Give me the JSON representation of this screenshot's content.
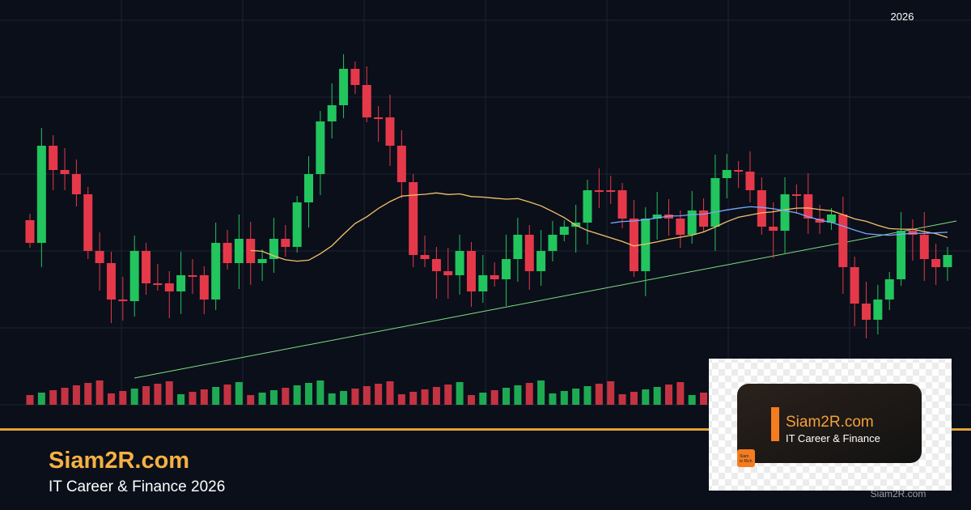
{
  "header": {
    "year": "2026"
  },
  "footer": {
    "title": "Siam2R.com",
    "subtitle": "IT Career & Finance 2026"
  },
  "logo_card": {
    "title": "Siam2R.com",
    "subtitle": "IT Career & Finance",
    "badge": [
      "Siam",
      "to Rich"
    ]
  },
  "watermark": "Siam2R.com"
}
